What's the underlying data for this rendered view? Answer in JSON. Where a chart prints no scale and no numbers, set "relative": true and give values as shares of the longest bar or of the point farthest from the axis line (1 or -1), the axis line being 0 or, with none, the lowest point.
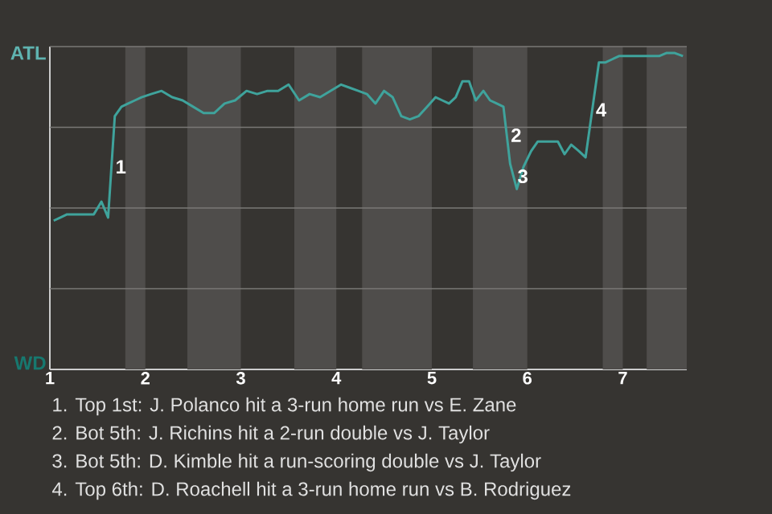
{
  "chart_data": {
    "type": "line",
    "relative": true,
    "grid": "y",
    "marker": "none",
    "line_style": "solid",
    "xlim": [
      1,
      7.67
    ],
    "xticks": [
      1,
      2,
      3,
      4,
      5,
      6,
      7
    ],
    "series": [
      {
        "color": "#3fa39c",
        "x": [
          1.04,
          1.11,
          1.18,
          1.25,
          1.32,
          1.39,
          1.46,
          1.54,
          1.61,
          1.68,
          1.75,
          1.82,
          1.89,
          1.96,
          2.06,
          2.17,
          2.28,
          2.39,
          2.5,
          2.61,
          2.72,
          2.83,
          2.94,
          3.06,
          3.17,
          3.28,
          3.39,
          3.5,
          3.61,
          3.72,
          3.83,
          3.94,
          4.05,
          4.14,
          4.23,
          4.32,
          4.41,
          4.5,
          4.59,
          4.68,
          4.77,
          4.86,
          4.95,
          5.04,
          5.11,
          5.18,
          5.25,
          5.32,
          5.39,
          5.46,
          5.54,
          5.61,
          5.68,
          5.75,
          5.82,
          5.89,
          5.96,
          6.04,
          6.11,
          6.18,
          6.25,
          6.32,
          6.39,
          6.46,
          6.54,
          6.61,
          6.68,
          6.75,
          6.82,
          6.89,
          6.96,
          7.04,
          7.13,
          7.21,
          7.29,
          7.38,
          7.46,
          7.54,
          7.63
        ],
        "values": [
          0.47,
          0.48,
          0.49,
          0.49,
          0.49,
          0.49,
          0.49,
          0.53,
          0.48,
          0.8,
          0.83,
          0.84,
          0.85,
          0.86,
          0.87,
          0.88,
          0.86,
          0.85,
          0.83,
          0.81,
          0.81,
          0.84,
          0.85,
          0.88,
          0.87,
          0.88,
          0.88,
          0.9,
          0.85,
          0.87,
          0.86,
          0.88,
          0.9,
          0.89,
          0.88,
          0.87,
          0.84,
          0.88,
          0.86,
          0.8,
          0.79,
          0.8,
          0.83,
          0.86,
          0.85,
          0.84,
          0.86,
          0.91,
          0.91,
          0.85,
          0.88,
          0.85,
          0.84,
          0.83,
          0.65,
          0.57,
          0.64,
          0.69,
          0.72,
          0.72,
          0.72,
          0.72,
          0.68,
          0.71,
          0.69,
          0.67,
          0.82,
          0.97,
          0.97,
          0.98,
          0.99,
          0.99,
          0.99,
          0.99,
          0.99,
          0.99,
          1.0,
          1.0,
          0.99
        ]
      }
    ],
    "bands": [
      {
        "axis": "x",
        "from": 1.79,
        "to": 2.0,
        "color": "#4f4d4b"
      },
      {
        "axis": "x",
        "from": 2.44,
        "to": 3.0,
        "color": "#4f4d4b"
      },
      {
        "axis": "x",
        "from": 3.56,
        "to": 4.0,
        "color": "#4f4d4b"
      },
      {
        "axis": "x",
        "from": 4.27,
        "to": 5.0,
        "color": "#4f4d4b"
      },
      {
        "axis": "x",
        "from": 5.43,
        "to": 6.0,
        "color": "#4f4d4b"
      },
      {
        "axis": "x",
        "from": 6.79,
        "to": 7.0,
        "color": "#4f4d4b"
      },
      {
        "axis": "x",
        "from": 7.25,
        "to": 7.67,
        "color": "#4f4d4b"
      }
    ],
    "annotations": [
      {
        "text": "1",
        "x": 1.65,
        "y": 0.64
      },
      {
        "text": "2",
        "x": 5.79,
        "y": 0.74
      },
      {
        "text": "3",
        "x": 5.86,
        "y": 0.61
      },
      {
        "text": "4",
        "x": 6.68,
        "y": 0.82
      },
      "ATL",
      "WD",
      "1. Top 1st: J. Polanco hit a 3-run home run vs E. Zane",
      "2. Bot 5th: J. Richins hit a 2-run double vs J. Taylor",
      "3. Bot 5th: D. Kimble hit a run-scoring double vs J. Taylor",
      "4. Top 6th: D. Roachell hit a 3-run home run vs B. Rodriguez"
    ]
  }
}
